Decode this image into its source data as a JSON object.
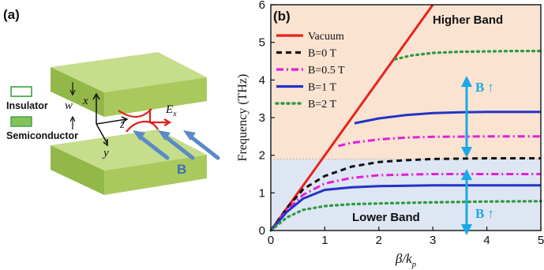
{
  "panel_a": {
    "label": "(a)",
    "legend": {
      "insulator": "Insulator",
      "semiconductor": "Semiconductor"
    },
    "axes": {
      "x": "x",
      "y": "y",
      "z": "z"
    },
    "width_symbol": "w",
    "field": "E",
    "field_subscript": "x",
    "magnetic_label": "B",
    "colors": {
      "slab_top": "#c6dd8c",
      "slab_side": "#93b84a",
      "slab_front": "#a9c95e",
      "arrow": "#5b8ac6",
      "field": "#e0201b"
    }
  },
  "panel_b": {
    "label": "(b)",
    "higher_band_label": "Higher Band",
    "lower_band_label": "Lower Band",
    "b_arrow_label": "B",
    "b_arrow_glyph": "↑",
    "colors": {
      "upper_bg": "#fbe3d2",
      "lower_bg": "#dde6f2",
      "b_arrow": "#1aa9e6"
    }
  },
  "chart_data": {
    "type": "line",
    "xlabel": "β/k",
    "xlabel_sub": "p",
    "ylabel": "Frequency (THz)",
    "xlim": [
      0,
      5
    ],
    "ylim": [
      0,
      6
    ],
    "xticks": [
      "0",
      "1",
      "2",
      "3",
      "4",
      "5"
    ],
    "yticks": [
      "0",
      "1",
      "2",
      "3",
      "4",
      "5",
      "6"
    ],
    "grid": false,
    "legend_position": "top-left",
    "band_boundary": 1.9,
    "legend": [
      "Vacuum",
      "B=0 T",
      "B=0.5 T",
      "B=1 T",
      "B=2 T"
    ],
    "series": [
      {
        "name": "Vacuum",
        "style": "solid",
        "color": "#e8231b",
        "x": [
          0,
          3.0
        ],
        "y": [
          0,
          6.0
        ]
      },
      {
        "name": "B=0 T",
        "style": "dash",
        "color": "#111111",
        "x": [
          0,
          0.3,
          0.6,
          1.0,
          1.5,
          2.0,
          2.5,
          3.0,
          4.0,
          5.0
        ],
        "y": [
          0,
          0.6,
          1.1,
          1.45,
          1.7,
          1.82,
          1.87,
          1.9,
          1.92,
          1.92
        ]
      },
      {
        "name": "B=0.5 T",
        "style": "dashdot",
        "color": "#e21fd8",
        "x": [
          0,
          0.3,
          0.6,
          1.0,
          1.5,
          2.0,
          3.0,
          4.0,
          5.0
        ],
        "y": [
          0,
          0.55,
          0.95,
          1.25,
          1.4,
          1.47,
          1.5,
          1.5,
          1.5
        ]
      },
      {
        "name": "B=0.5 T upper",
        "style": "dashdot",
        "color": "#e21fd8",
        "x": [
          1.25,
          1.5,
          2.0,
          2.5,
          3.0,
          4.0,
          5.0
        ],
        "y": [
          2.25,
          2.33,
          2.42,
          2.47,
          2.49,
          2.5,
          2.5
        ]
      },
      {
        "name": "B=1 T",
        "style": "solid",
        "color": "#2233c7",
        "x": [
          0,
          0.3,
          0.6,
          1.0,
          1.5,
          2.0,
          3.0,
          4.0,
          5.0
        ],
        "y": [
          0,
          0.5,
          0.85,
          1.08,
          1.15,
          1.18,
          1.2,
          1.2,
          1.2
        ]
      },
      {
        "name": "B=1 T upper",
        "style": "solid",
        "color": "#2233c7",
        "x": [
          1.55,
          2.0,
          2.5,
          3.0,
          3.5,
          4.0,
          5.0
        ],
        "y": [
          2.85,
          2.98,
          3.07,
          3.12,
          3.14,
          3.15,
          3.15
        ]
      },
      {
        "name": "B=2 T",
        "style": "dot",
        "color": "#2c9a3e",
        "x": [
          0,
          0.3,
          0.6,
          1.0,
          1.5,
          2.0,
          3.0,
          4.0,
          5.0
        ],
        "y": [
          0,
          0.35,
          0.55,
          0.65,
          0.7,
          0.72,
          0.75,
          0.77,
          0.78
        ]
      },
      {
        "name": "B=2 T upper",
        "style": "dot",
        "color": "#2c9a3e",
        "x": [
          2.3,
          2.6,
          3.0,
          3.5,
          4.0,
          4.5,
          5.0
        ],
        "y": [
          4.55,
          4.65,
          4.72,
          4.75,
          4.76,
          4.77,
          4.77
        ]
      }
    ]
  }
}
